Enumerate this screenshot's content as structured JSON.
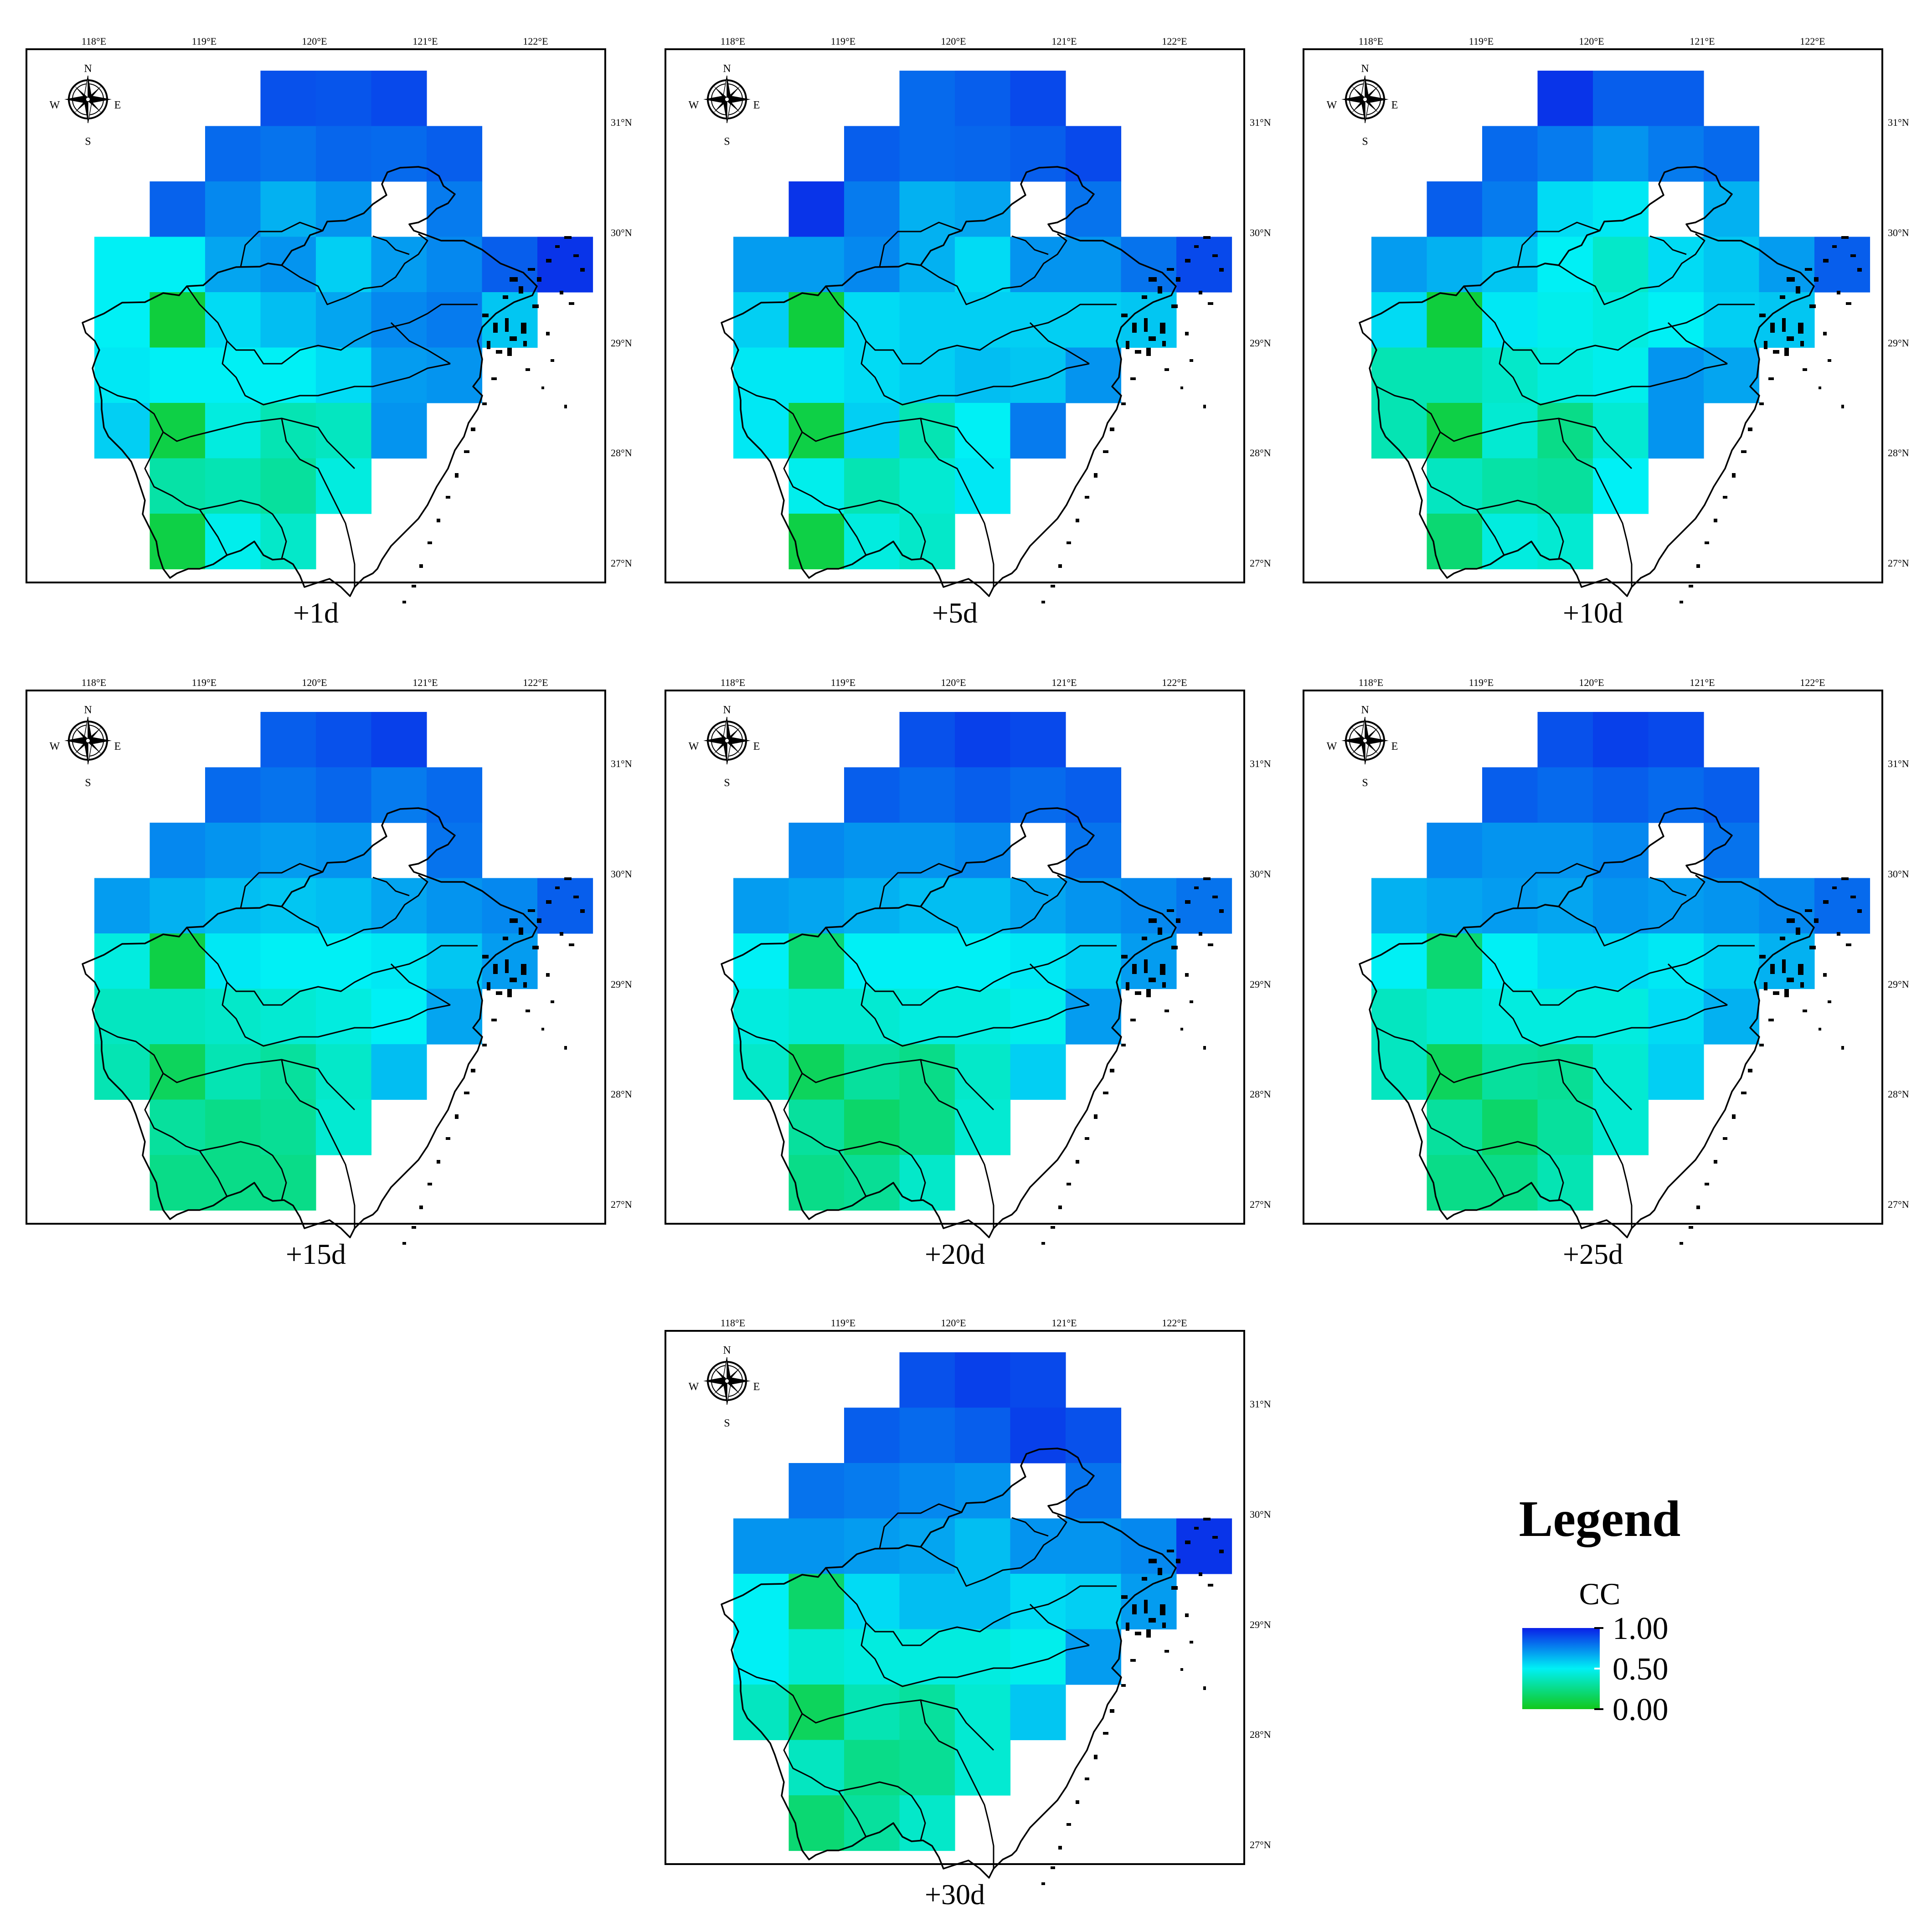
{
  "lon_ticks": [
    "118°E",
    "119°E",
    "120°E",
    "121°E",
    "122°E"
  ],
  "lat_ticks": [
    "31°N",
    "30°N",
    "29°N",
    "28°N",
    "27°N"
  ],
  "compass": {
    "n": "N",
    "s": "S",
    "e": "E",
    "w": "W"
  },
  "colors": {
    "high": "#0a1fe8",
    "mid": "#00f0f5",
    "low": "#12c81a"
  },
  "legend": {
    "title": "Legend",
    "variable": "CC",
    "ticks": [
      "1.00",
      "0.50",
      "0.00"
    ],
    "range": [
      0,
      1
    ]
  },
  "grid": {
    "lon_start": 118.0,
    "lat_top": 31.5,
    "cell_deg": 0.5,
    "cols": 9,
    "rows": 9
  },
  "panels": [
    {
      "label": "+1d",
      "cells": [
        [
          null,
          null,
          null,
          0.88,
          0.87,
          0.9,
          null,
          null,
          null
        ],
        [
          null,
          null,
          0.82,
          0.8,
          0.83,
          0.82,
          0.85,
          null,
          null
        ],
        [
          null,
          0.84,
          0.75,
          0.65,
          0.72,
          null,
          0.78,
          null,
          null
        ],
        [
          0.5,
          0.5,
          0.68,
          0.72,
          0.58,
          0.7,
          0.75,
          0.85,
          0.95
        ],
        [
          0.5,
          0.08,
          0.55,
          0.62,
          0.68,
          0.75,
          0.78,
          0.6,
          null
        ],
        [
          0.52,
          0.5,
          0.5,
          0.5,
          0.55,
          0.7,
          0.72,
          null,
          null
        ],
        [
          0.58,
          0.1,
          0.45,
          0.35,
          0.38,
          0.72,
          null,
          null,
          null
        ],
        [
          null,
          0.32,
          0.35,
          0.3,
          0.45,
          null,
          null,
          null,
          null
        ],
        [
          null,
          0.1,
          0.48,
          0.4,
          null,
          null,
          null,
          null,
          null
        ]
      ]
    },
    {
      "label": "+5d",
      "cells": [
        [
          null,
          null,
          null,
          0.82,
          0.85,
          0.9,
          null,
          null,
          null
        ],
        [
          null,
          null,
          0.85,
          0.82,
          0.83,
          0.85,
          0.9,
          null,
          null
        ],
        [
          null,
          0.95,
          0.78,
          0.65,
          0.68,
          null,
          0.8,
          null,
          null
        ],
        [
          0.7,
          0.7,
          0.75,
          0.65,
          0.55,
          0.72,
          0.72,
          0.8,
          0.9
        ],
        [
          0.58,
          0.08,
          0.55,
          0.58,
          0.58,
          0.58,
          0.58,
          0.6,
          null
        ],
        [
          0.52,
          0.52,
          0.55,
          0.58,
          0.62,
          0.6,
          0.72,
          null,
          null
        ],
        [
          0.52,
          0.1,
          0.58,
          0.35,
          0.5,
          0.78,
          null,
          null,
          null
        ],
        [
          null,
          0.48,
          0.35,
          0.42,
          0.52,
          null,
          null,
          null,
          null
        ],
        [
          null,
          0.1,
          0.45,
          0.4,
          null,
          null,
          null,
          null,
          null
        ]
      ]
    },
    {
      "label": "+10d",
      "cells": [
        [
          null,
          null,
          null,
          0.95,
          0.85,
          0.85,
          null,
          null,
          null
        ],
        [
          null,
          null,
          0.82,
          0.78,
          0.72,
          0.78,
          0.82,
          null,
          null
        ],
        [
          null,
          0.85,
          0.78,
          0.55,
          0.52,
          null,
          0.65,
          null,
          null
        ],
        [
          0.7,
          0.65,
          0.6,
          0.5,
          0.4,
          0.55,
          0.6,
          0.7,
          0.85
        ],
        [
          0.55,
          0.08,
          0.52,
          0.48,
          0.45,
          0.5,
          0.58,
          0.6,
          null
        ],
        [
          0.35,
          0.35,
          0.4,
          0.45,
          0.48,
          0.72,
          0.68,
          null,
          null
        ],
        [
          0.35,
          0.1,
          0.42,
          0.25,
          0.42,
          0.72,
          null,
          null,
          null
        ],
        [
          null,
          0.38,
          0.32,
          0.3,
          0.5,
          null,
          null,
          null,
          null
        ],
        [
          null,
          0.2,
          0.45,
          0.42,
          null,
          null,
          null,
          null,
          null
        ]
      ]
    },
    {
      "label": "+15d",
      "cells": [
        [
          null,
          null,
          null,
          0.85,
          0.88,
          0.92,
          null,
          null,
          null
        ],
        [
          null,
          null,
          0.82,
          0.8,
          0.83,
          0.78,
          0.82,
          null,
          null
        ],
        [
          null,
          0.75,
          0.72,
          0.7,
          0.72,
          null,
          0.8,
          null,
          null
        ],
        [
          0.7,
          0.65,
          0.62,
          0.6,
          0.62,
          0.68,
          0.72,
          0.75,
          0.85
        ],
        [
          0.45,
          0.1,
          0.52,
          0.5,
          0.5,
          0.52,
          0.6,
          0.7,
          null
        ],
        [
          0.38,
          0.38,
          0.4,
          0.42,
          0.45,
          0.5,
          0.68,
          null,
          null
        ],
        [
          0.35,
          0.15,
          0.35,
          0.3,
          0.4,
          0.62,
          null,
          null,
          null
        ],
        [
          null,
          0.3,
          0.25,
          0.28,
          0.42,
          null,
          null,
          null,
          null
        ],
        [
          null,
          0.25,
          0.25,
          0.25,
          null,
          null,
          null,
          null,
          null
        ]
      ]
    },
    {
      "label": "+20d",
      "cells": [
        [
          null,
          null,
          null,
          0.88,
          0.92,
          0.9,
          null,
          null,
          null
        ],
        [
          null,
          null,
          0.85,
          0.82,
          0.85,
          0.82,
          0.85,
          null,
          null
        ],
        [
          null,
          0.75,
          0.72,
          0.72,
          0.75,
          null,
          0.8,
          null,
          null
        ],
        [
          0.7,
          0.68,
          0.65,
          0.62,
          0.62,
          0.68,
          0.72,
          0.75,
          0.8
        ],
        [
          0.5,
          0.2,
          0.5,
          0.5,
          0.5,
          0.52,
          0.58,
          0.7,
          null
        ],
        [
          0.45,
          0.42,
          0.42,
          0.45,
          0.45,
          0.48,
          0.7,
          null,
          null
        ],
        [
          0.4,
          0.15,
          0.3,
          0.25,
          0.4,
          0.58,
          null,
          null,
          null
        ],
        [
          null,
          0.3,
          0.18,
          0.25,
          0.42,
          null,
          null,
          null,
          null
        ],
        [
          null,
          0.25,
          0.28,
          0.4,
          null,
          null,
          null,
          null,
          null
        ]
      ]
    },
    {
      "label": "+25d",
      "cells": [
        [
          null,
          null,
          null,
          0.88,
          0.92,
          0.9,
          null,
          null,
          null
        ],
        [
          null,
          null,
          0.85,
          0.82,
          0.85,
          0.82,
          0.85,
          null,
          null
        ],
        [
          null,
          0.75,
          0.72,
          0.72,
          0.75,
          null,
          0.8,
          null,
          null
        ],
        [
          0.65,
          0.68,
          0.7,
          0.68,
          0.72,
          0.7,
          0.72,
          0.75,
          0.82
        ],
        [
          0.5,
          0.2,
          0.5,
          0.55,
          0.55,
          0.52,
          0.58,
          0.65,
          null
        ],
        [
          0.38,
          0.42,
          0.45,
          0.45,
          0.45,
          0.55,
          0.65,
          null,
          null
        ],
        [
          0.38,
          0.15,
          0.3,
          0.28,
          0.42,
          0.58,
          null,
          null,
          null
        ],
        [
          null,
          0.3,
          0.18,
          0.3,
          0.42,
          null,
          null,
          null,
          null
        ],
        [
          null,
          0.25,
          0.25,
          0.35,
          null,
          null,
          null,
          null,
          null
        ]
      ]
    },
    {
      "label": "+30d",
      "cells": [
        [
          null,
          null,
          null,
          0.88,
          0.92,
          0.9,
          null,
          null,
          null
        ],
        [
          null,
          null,
          0.85,
          0.82,
          0.85,
          0.92,
          0.88,
          null,
          null
        ],
        [
          null,
          0.8,
          0.78,
          0.75,
          0.72,
          null,
          0.8,
          null,
          null
        ],
        [
          0.72,
          0.72,
          0.7,
          0.68,
          0.62,
          0.72,
          0.72,
          0.75,
          0.95
        ],
        [
          0.5,
          0.18,
          0.55,
          0.62,
          0.62,
          0.55,
          0.58,
          0.7,
          null
        ],
        [
          0.5,
          0.42,
          0.45,
          0.45,
          0.45,
          0.48,
          0.7,
          null,
          null
        ],
        [
          0.38,
          0.15,
          0.35,
          0.3,
          0.42,
          0.6,
          null,
          null,
          null
        ],
        [
          null,
          0.38,
          0.25,
          0.28,
          0.42,
          null,
          null,
          null,
          null
        ],
        [
          null,
          0.2,
          0.3,
          0.4,
          null,
          null,
          null,
          null,
          null
        ]
      ]
    }
  ]
}
